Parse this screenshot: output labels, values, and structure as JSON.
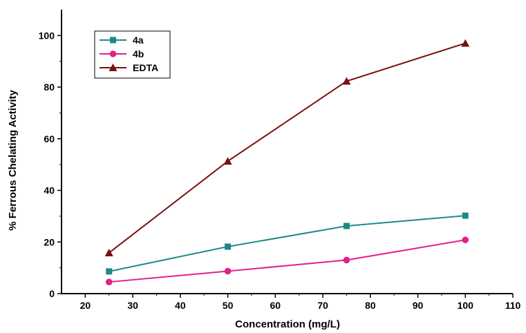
{
  "chart_data": {
    "type": "line",
    "title": "",
    "xlabel": "Concentration (mg/L)",
    "ylabel": "% Ferrous Chelating Activity",
    "xlim": [
      15,
      110
    ],
    "ylim": [
      0,
      110
    ],
    "x_ticks": [
      20,
      30,
      40,
      50,
      60,
      70,
      80,
      90,
      100,
      110
    ],
    "y_ticks": [
      0,
      20,
      40,
      60,
      80,
      100
    ],
    "x": [
      25,
      50,
      75,
      100
    ],
    "series": [
      {
        "name": "4a",
        "values": [
          8.6,
          18.2,
          26.2,
          30.2
        ],
        "color": "#1a8a87",
        "marker": "square"
      },
      {
        "name": "4b",
        "values": [
          4.5,
          8.7,
          13.0,
          20.8
        ],
        "color": "#e0208a",
        "marker": "circle"
      },
      {
        "name": "EDTA",
        "values": [
          15.8,
          51.3,
          82.3,
          97.0
        ],
        "color": "#7a0f0f",
        "marker": "triangle"
      }
    ],
    "grid": false,
    "legend_position": "top-left"
  }
}
